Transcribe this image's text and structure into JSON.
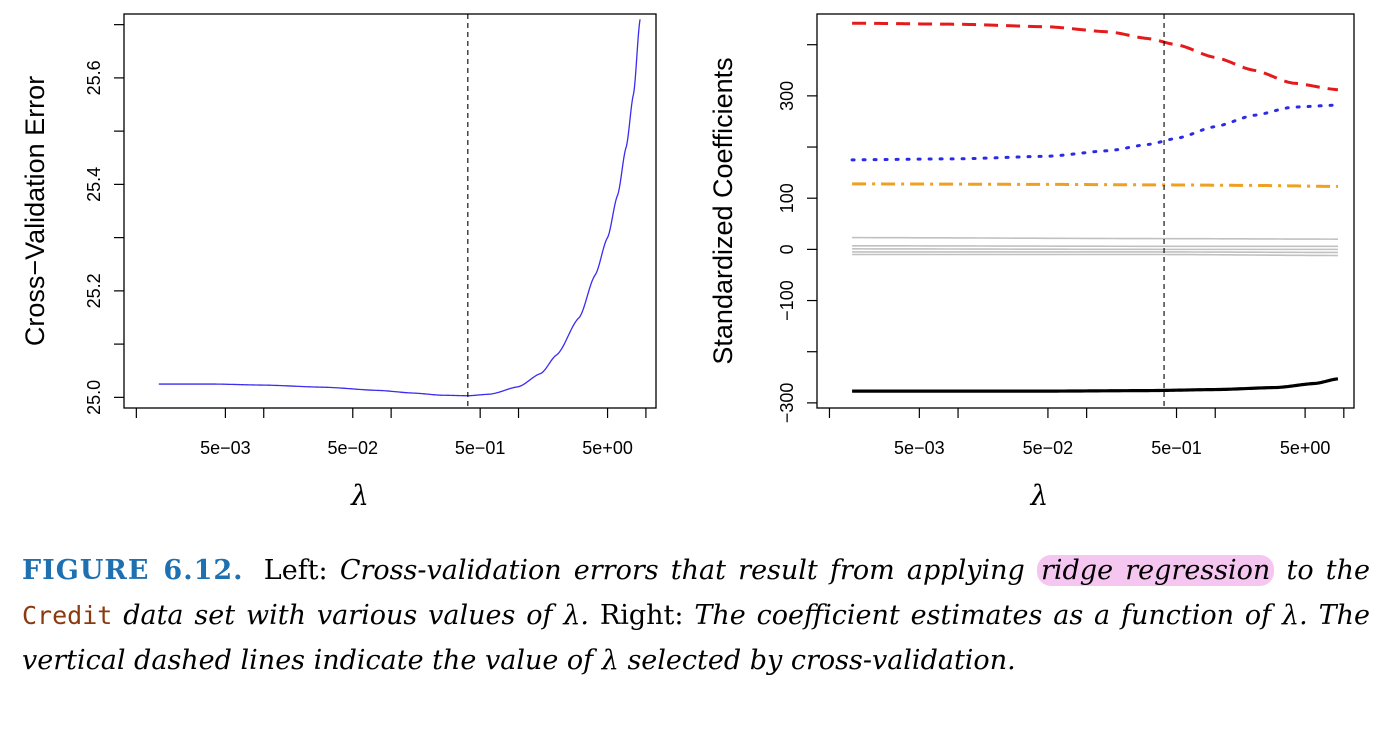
{
  "chart_data": [
    {
      "type": "line",
      "title": "",
      "xlabel": "λ",
      "ylabel": "Cross−Validation Error",
      "x_scale": "log",
      "xlim": [
        0.0008,
        12
      ],
      "ylim": [
        24.98,
        25.72
      ],
      "x_ticks": [
        0.001,
        0.005,
        0.01,
        0.05,
        0.1,
        0.5,
        1,
        5,
        10
      ],
      "x_tick_labels": [
        "5e−03",
        "5e−02",
        "5e−01",
        "5e+00"
      ],
      "x_tick_label_values": [
        0.005,
        0.05,
        0.5,
        5
      ],
      "y_ticks": [
        25.0,
        25.1,
        25.2,
        25.3,
        25.4,
        25.5,
        25.6,
        25.7
      ],
      "y_tick_labels": [
        "25.0",
        "25.2",
        "25.4",
        "25.6"
      ],
      "y_tick_label_values": [
        25.0,
        25.2,
        25.4,
        25.6
      ],
      "selected_lambda": 0.4,
      "series": [
        {
          "color": "#3a2cf0",
          "x": [
            0.0015,
            0.004,
            0.01,
            0.03,
            0.08,
            0.15,
            0.25,
            0.4,
            0.6,
            1.0,
            1.5,
            2.0,
            3.0,
            4.0,
            5.0,
            6.0,
            7.0,
            8.0,
            9.0
          ],
          "y": [
            25.025,
            25.025,
            25.023,
            25.019,
            25.013,
            25.008,
            25.004,
            25.003,
            25.006,
            25.02,
            25.045,
            25.08,
            25.15,
            25.23,
            25.3,
            25.38,
            25.47,
            25.57,
            25.71
          ]
        }
      ]
    },
    {
      "type": "line",
      "title": "",
      "xlabel": "λ",
      "ylabel": "Standardized Coefficients",
      "x_scale": "log",
      "xlim": [
        0.0008,
        12
      ],
      "ylim": [
        -310,
        460
      ],
      "x_ticks": [
        0.001,
        0.005,
        0.01,
        0.05,
        0.1,
        0.5,
        1,
        5,
        10
      ],
      "x_tick_labels": [
        "5e−03",
        "5e−02",
        "5e−01",
        "5e+00"
      ],
      "x_tick_label_values": [
        0.005,
        0.05,
        0.5,
        5
      ],
      "y_ticks": [
        -300,
        -200,
        -100,
        0,
        100,
        200,
        300,
        400
      ],
      "y_tick_labels": [
        "−300",
        "−100",
        "0",
        "100",
        "300"
      ],
      "y_tick_label_values": [
        -300,
        -100,
        0,
        100,
        300
      ],
      "selected_lambda": 0.4,
      "series": [
        {
          "color": "#e41a1c",
          "dash": "dashed",
          "x": [
            0.0015,
            0.01,
            0.05,
            0.15,
            0.3,
            0.5,
            1,
            2,
            4,
            9
          ],
          "y": [
            442,
            440,
            435,
            425,
            412,
            400,
            375,
            350,
            325,
            312
          ]
        },
        {
          "color": "#2a2ae8",
          "dash": "dotted",
          "x": [
            0.0015,
            0.01,
            0.05,
            0.15,
            0.3,
            0.5,
            1,
            2,
            4,
            9
          ],
          "y": [
            175,
            177,
            182,
            193,
            205,
            217,
            240,
            262,
            278,
            282
          ]
        },
        {
          "color": "#f0a020",
          "dash": "dashdot",
          "x": [
            0.0015,
            0.05,
            0.4,
            2,
            9
          ],
          "y": [
            128,
            127,
            126,
            125,
            123
          ]
        },
        {
          "color": "#c0c0c0",
          "dash": "solid",
          "x": [
            0.0015,
            0.4,
            9
          ],
          "y": [
            23,
            21,
            20
          ]
        },
        {
          "color": "#c0c0c0",
          "dash": "solid",
          "x": [
            0.0015,
            0.4,
            9
          ],
          "y": [
            7,
            6,
            6
          ]
        },
        {
          "color": "#c0c0c0",
          "dash": "solid",
          "x": [
            0.0015,
            0.4,
            9
          ],
          "y": [
            1,
            0,
            0
          ]
        },
        {
          "color": "#c0c0c0",
          "dash": "solid",
          "x": [
            0.0015,
            0.4,
            9
          ],
          "y": [
            -5,
            -5,
            -6
          ]
        },
        {
          "color": "#c0c0c0",
          "dash": "solid",
          "x": [
            0.0015,
            0.4,
            9
          ],
          "y": [
            -10,
            -10,
            -12
          ]
        },
        {
          "color": "#000000",
          "dash": "solid",
          "x": [
            0.0015,
            0.05,
            0.3,
            1,
            3,
            6,
            9
          ],
          "y": [
            -277,
            -277,
            -276,
            -274,
            -270,
            -262,
            -253
          ]
        }
      ]
    }
  ],
  "caption": {
    "label": "FIGURE 6.12.",
    "text1": "Left:",
    "text2": "Cross-validation errors that result from applying",
    "highlight": "ridge regression",
    "text3": "to the",
    "code": "Credit",
    "text4": "data set with various values of λ.",
    "text5": "Right:",
    "text6": "The coefficient estimates as a function of λ. The vertical dashed lines indicate the value of λ selected by cross-validation."
  }
}
